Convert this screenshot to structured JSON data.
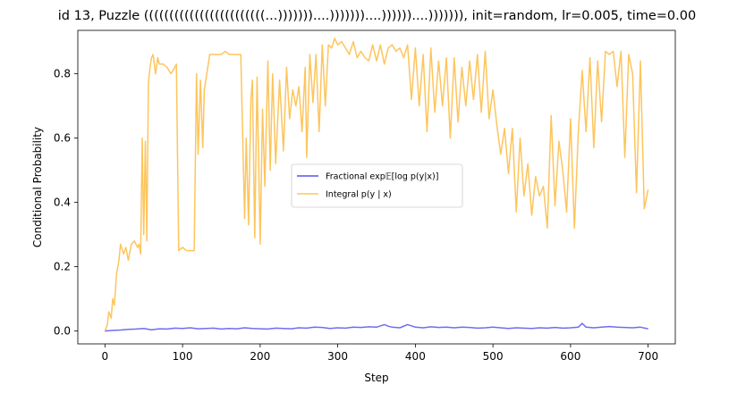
{
  "chart_data": {
    "type": "line",
    "title": "id 13, Puzzle ((((((((((((((((((((((((...)))))))....)))))))....))))))....))))))), init=random, lr=0.005, time=0.00",
    "xlabel": "Step",
    "ylabel": "Conditional Probability",
    "xlim": [
      -35,
      735
    ],
    "ylim": [
      -0.04,
      0.935
    ],
    "xticks": [
      0,
      100,
      200,
      300,
      400,
      500,
      600,
      700
    ],
    "yticks": [
      0.0,
      0.2,
      0.4,
      0.6,
      0.8
    ],
    "grid": false,
    "legend_position": "center",
    "series": [
      {
        "name": "Fractional exp𝔼[log p(y|x)]",
        "color": "#5555ee",
        "x": [
          0,
          10,
          20,
          30,
          40,
          50,
          60,
          70,
          80,
          90,
          100,
          110,
          120,
          130,
          140,
          150,
          160,
          170,
          180,
          190,
          200,
          210,
          220,
          230,
          240,
          250,
          260,
          270,
          280,
          290,
          300,
          310,
          320,
          330,
          340,
          350,
          360,
          365,
          370,
          380,
          390,
          400,
          410,
          420,
          430,
          440,
          450,
          460,
          470,
          480,
          490,
          500,
          510,
          520,
          530,
          540,
          550,
          560,
          570,
          580,
          590,
          600,
          610,
          615,
          620,
          630,
          640,
          650,
          660,
          670,
          680,
          690,
          700
        ],
        "y": [
          0.0,
          0.002,
          0.003,
          0.005,
          0.006,
          0.008,
          0.004,
          0.007,
          0.006,
          0.009,
          0.008,
          0.01,
          0.007,
          0.008,
          0.009,
          0.006,
          0.008,
          0.007,
          0.01,
          0.008,
          0.007,
          0.006,
          0.009,
          0.008,
          0.007,
          0.01,
          0.009,
          0.012,
          0.011,
          0.008,
          0.01,
          0.009,
          0.012,
          0.011,
          0.013,
          0.012,
          0.02,
          0.015,
          0.012,
          0.01,
          0.02,
          0.012,
          0.01,
          0.013,
          0.011,
          0.012,
          0.01,
          0.012,
          0.011,
          0.009,
          0.01,
          0.012,
          0.01,
          0.008,
          0.01,
          0.009,
          0.008,
          0.01,
          0.009,
          0.011,
          0.009,
          0.01,
          0.012,
          0.024,
          0.012,
          0.01,
          0.012,
          0.014,
          0.012,
          0.011,
          0.01,
          0.012,
          0.007
        ]
      },
      {
        "name": "Integral p(y | x)",
        "color": "#fdb734",
        "x": [
          0,
          3,
          5,
          8,
          10,
          12,
          15,
          18,
          20,
          24,
          27,
          30,
          34,
          38,
          42,
          44,
          46,
          48,
          50,
          52,
          54,
          56,
          58,
          60,
          62,
          65,
          68,
          70,
          75,
          80,
          85,
          90,
          92,
          95,
          100,
          105,
          110,
          115,
          118,
          120,
          123,
          126,
          128,
          130,
          135,
          140,
          145,
          150,
          155,
          160,
          165,
          170,
          175,
          180,
          182,
          185,
          188,
          190,
          193,
          196,
          200,
          203,
          206,
          210,
          213,
          216,
          220,
          225,
          230,
          234,
          238,
          242,
          246,
          250,
          254,
          258,
          260,
          264,
          268,
          272,
          276,
          280,
          284,
          288,
          292,
          296,
          300,
          305,
          310,
          315,
          320,
          325,
          330,
          335,
          340,
          345,
          350,
          355,
          360,
          365,
          370,
          375,
          380,
          385,
          390,
          395,
          400,
          405,
          410,
          415,
          420,
          425,
          430,
          435,
          440,
          445,
          450,
          455,
          460,
          465,
          470,
          475,
          480,
          485,
          490,
          495,
          500,
          505,
          510,
          515,
          520,
          525,
          530,
          535,
          540,
          545,
          550,
          555,
          560,
          565,
          570,
          575,
          580,
          585,
          590,
          595,
          600,
          605,
          610,
          615,
          620,
          625,
          630,
          635,
          640,
          645,
          650,
          655,
          660,
          665,
          670,
          675,
          680,
          685,
          690,
          695,
          700
        ],
        "y": [
          0.0,
          0.02,
          0.06,
          0.04,
          0.1,
          0.08,
          0.18,
          0.22,
          0.27,
          0.24,
          0.26,
          0.22,
          0.27,
          0.28,
          0.26,
          0.27,
          0.24,
          0.6,
          0.3,
          0.59,
          0.28,
          0.77,
          0.82,
          0.85,
          0.86,
          0.8,
          0.85,
          0.83,
          0.83,
          0.82,
          0.8,
          0.82,
          0.83,
          0.25,
          0.26,
          0.25,
          0.25,
          0.25,
          0.8,
          0.55,
          0.78,
          0.57,
          0.75,
          0.78,
          0.86,
          0.86,
          0.86,
          0.86,
          0.87,
          0.86,
          0.86,
          0.86,
          0.86,
          0.35,
          0.6,
          0.33,
          0.72,
          0.78,
          0.29,
          0.79,
          0.27,
          0.69,
          0.45,
          0.84,
          0.5,
          0.8,
          0.52,
          0.78,
          0.56,
          0.82,
          0.66,
          0.75,
          0.7,
          0.76,
          0.62,
          0.82,
          0.54,
          0.86,
          0.71,
          0.86,
          0.62,
          0.89,
          0.7,
          0.89,
          0.88,
          0.91,
          0.89,
          0.9,
          0.88,
          0.86,
          0.9,
          0.85,
          0.87,
          0.85,
          0.84,
          0.89,
          0.84,
          0.89,
          0.83,
          0.88,
          0.89,
          0.87,
          0.88,
          0.85,
          0.89,
          0.72,
          0.88,
          0.7,
          0.86,
          0.62,
          0.88,
          0.68,
          0.84,
          0.7,
          0.85,
          0.6,
          0.85,
          0.65,
          0.82,
          0.7,
          0.84,
          0.72,
          0.86,
          0.68,
          0.87,
          0.66,
          0.75,
          0.64,
          0.55,
          0.63,
          0.49,
          0.63,
          0.37,
          0.6,
          0.42,
          0.52,
          0.36,
          0.48,
          0.42,
          0.45,
          0.32,
          0.67,
          0.39,
          0.59,
          0.5,
          0.37,
          0.66,
          0.32,
          0.62,
          0.81,
          0.62,
          0.85,
          0.57,
          0.84,
          0.65,
          0.87,
          0.86,
          0.87,
          0.76,
          0.87,
          0.54,
          0.86,
          0.8,
          0.43,
          0.84,
          0.38,
          0.44
        ]
      }
    ]
  }
}
